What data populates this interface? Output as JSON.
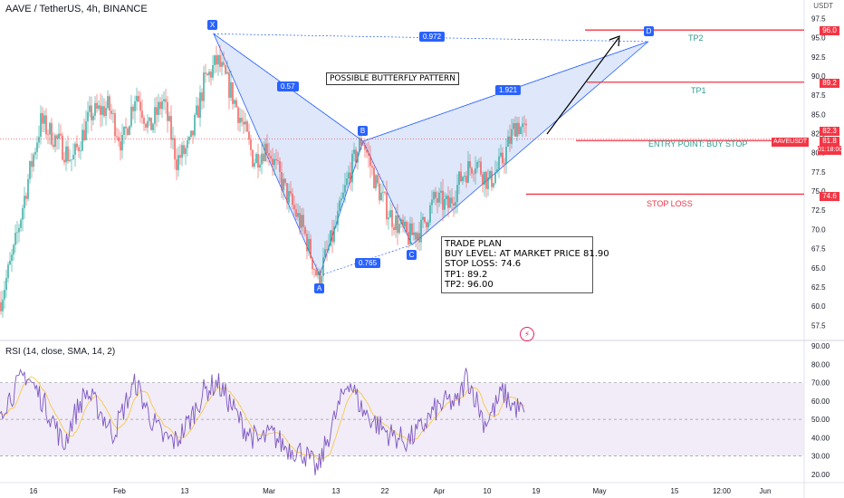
{
  "header": {
    "symbol": "AAVE / TetherUS, 4h, BINANCE",
    "rsi_label": "RSI (14, close, SMA, 14, 2)",
    "unit": "USDT"
  },
  "annotations": {
    "pattern_title": "POSSIBLE BUTTERFLY PATTERN",
    "trade_plan": [
      "TRADE PLAN",
      "BUY LEVEL: AT MARKET PRICE 81.90",
      "STOP LOSS: 74.6",
      "TP1: 89.2",
      "TP2: 96.00"
    ],
    "levels": {
      "tp2": {
        "label": "TP2",
        "price": 96.0,
        "price_label": "96.0",
        "color": "#2e9a8f"
      },
      "tp1": {
        "label": "TP1",
        "price": 89.2,
        "price_label": "89.2",
        "color": "#2e9a8f"
      },
      "entry": {
        "label": "ENTRY POINT: BUY STOP",
        "price": 82.3,
        "price_label": "82.3",
        "color": "#2e9a8f"
      },
      "stop": {
        "label": "STOP LOSS",
        "price": 74.6,
        "price_label": "74.6",
        "color": "#f23645"
      }
    },
    "ratios": {
      "xa": "0.57",
      "xb": "0.972",
      "bc_ext": "1.921",
      "ac": "0.765"
    },
    "points": [
      "X",
      "A",
      "B",
      "C",
      "D"
    ],
    "current": {
      "symbol_tag": "AAVEUSDT",
      "price": "81.8",
      "countdown": "01:18:00"
    },
    "lightning": "⚡"
  },
  "colors": {
    "up": "#26a69a",
    "down": "#ef5350",
    "pattern_fill": "#c5d3f5",
    "pattern_line": "#2962ff",
    "rsi": "#7e57c2",
    "rsi_sma": "#f7c948",
    "rsi_band": "#ede7f6",
    "level_line": "#f23645"
  },
  "chart_data": [
    {
      "type": "candlestick",
      "title": "AAVE / TetherUS, 4h, BINANCE",
      "y_ticks": [
        "97.5",
        "95.0",
        "92.5",
        "90.0",
        "87.5",
        "85.0",
        "82.5",
        "80.0",
        "77.5",
        "75.0",
        "72.5",
        "70.0",
        "67.5",
        "65.0",
        "62.5",
        "60.0",
        "57.5"
      ],
      "ylim": [
        56.0,
        98.5
      ],
      "x_ticks": [
        "16",
        "Feb",
        "13",
        "Mar",
        "13",
        "22",
        "Apr",
        "10",
        "19",
        "May",
        "15",
        "12:00",
        "Jun"
      ],
      "pattern_points": {
        "X": 95.5,
        "A": 64.0,
        "B": 81.5,
        "C": 68.0,
        "D": 94.5
      },
      "series_anchors": [
        [
          60.5,
          0
        ],
        [
          67,
          15
        ],
        [
          76,
          30
        ],
        [
          84,
          45
        ],
        [
          82,
          60
        ],
        [
          79,
          80
        ],
        [
          85,
          100
        ],
        [
          86,
          120
        ],
        [
          81,
          135
        ],
        [
          88,
          150
        ],
        [
          83,
          165
        ],
        [
          87,
          180
        ],
        [
          79,
          195
        ],
        [
          81,
          210
        ],
        [
          89,
          225
        ],
        [
          92,
          240
        ],
        [
          88,
          255
        ],
        [
          83,
          270
        ],
        [
          79,
          280
        ],
        [
          81,
          295
        ],
        [
          75,
          315
        ],
        [
          70,
          335
        ],
        [
          63.5,
          351
        ],
        [
          70,
          370
        ],
        [
          77,
          385
        ],
        [
          82,
          400
        ],
        [
          76,
          415
        ],
        [
          72,
          430
        ],
        [
          69,
          450
        ],
        [
          70,
          465
        ],
        [
          74,
          480
        ],
        [
          73,
          495
        ],
        [
          77,
          510
        ],
        [
          79,
          525
        ],
        [
          76,
          540
        ],
        [
          79,
          555
        ],
        [
          84,
          570
        ],
        [
          82.5,
          580
        ]
      ]
    },
    {
      "type": "line",
      "title": "RSI (14, close, SMA, 14, 2)",
      "y_ticks": [
        "90.00",
        "80.00",
        "70.00",
        "60.00",
        "50.00",
        "40.00",
        "30.00",
        "20.00"
      ],
      "ylim": [
        17,
        92
      ],
      "bands": [
        70,
        50,
        30
      ],
      "series_anchors": [
        [
          55,
          0
        ],
        [
          65,
          15
        ],
        [
          75,
          28
        ],
        [
          62,
          45
        ],
        [
          48,
          60
        ],
        [
          35,
          70
        ],
        [
          50,
          80
        ],
        [
          65,
          95
        ],
        [
          55,
          110
        ],
        [
          42,
          125
        ],
        [
          60,
          140
        ],
        [
          70,
          150
        ],
        [
          52,
          165
        ],
        [
          40,
          180
        ],
        [
          38,
          195
        ],
        [
          50,
          210
        ],
        [
          65,
          225
        ],
        [
          70,
          240
        ],
        [
          58,
          255
        ],
        [
          45,
          270
        ],
        [
          38,
          285
        ],
        [
          42,
          300
        ],
        [
          35,
          315
        ],
        [
          32,
          335
        ],
        [
          22,
          351
        ],
        [
          40,
          362
        ],
        [
          58,
          375
        ],
        [
          72,
          385
        ],
        [
          55,
          400
        ],
        [
          48,
          415
        ],
        [
          42,
          430
        ],
        [
          38,
          450
        ],
        [
          45,
          465
        ],
        [
          55,
          480
        ],
        [
          60,
          495
        ],
        [
          58,
          505
        ],
        [
          74,
          515
        ],
        [
          62,
          525
        ],
        [
          48,
          535
        ],
        [
          55,
          545
        ],
        [
          65,
          555
        ],
        [
          58,
          565
        ],
        [
          55,
          575
        ],
        [
          52,
          580
        ]
      ]
    }
  ]
}
